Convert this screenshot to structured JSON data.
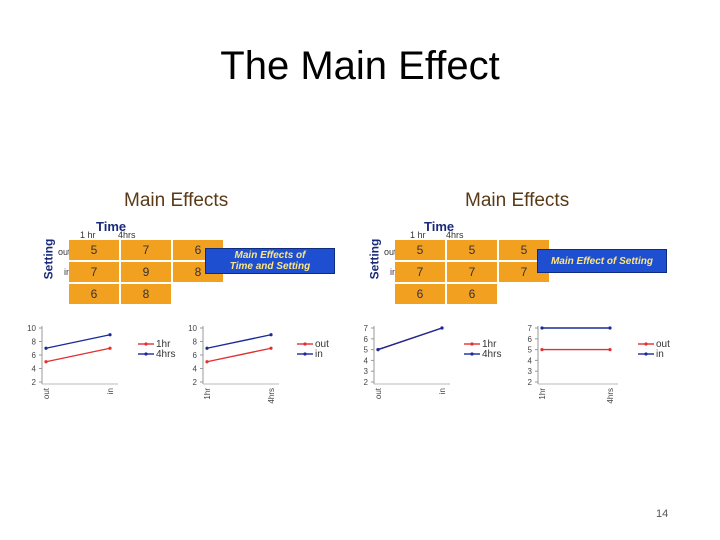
{
  "slide": {
    "title": "The Main Effect",
    "page_number": "14"
  },
  "panels": [
    {
      "title": "Main Effects",
      "time_label": "Time",
      "col_headers": [
        "1 hr",
        "4hrs"
      ],
      "setting_label": "Setting",
      "row_headers": [
        "out",
        "in"
      ],
      "cells": [
        [
          "5",
          "7",
          "6"
        ],
        [
          "7",
          "9",
          "8"
        ],
        [
          "6",
          "8"
        ]
      ],
      "box_text_1": "Main Effects of",
      "box_text_2": "Time and Setting"
    },
    {
      "title": "Main Effects",
      "time_label": "Time",
      "col_headers": [
        "1 hr",
        "4hrs"
      ],
      "setting_label": "Setting",
      "row_headers": [
        "out",
        "in"
      ],
      "cells": [
        [
          "5",
          "5",
          "5"
        ],
        [
          "7",
          "7",
          "7"
        ],
        [
          "6",
          "6"
        ]
      ],
      "box_text_1": "Main Effect of Setting",
      "box_text_2": ""
    }
  ],
  "chart_data": [
    {
      "type": "line",
      "ylim": [
        2,
        10
      ],
      "yticks": [
        "10",
        "8",
        "6",
        "4",
        "2"
      ],
      "categories": [
        "out",
        "in"
      ],
      "series": [
        {
          "name": "1hr",
          "values": [
            5,
            7
          ],
          "color": "#e03030"
        },
        {
          "name": "4hrs",
          "values": [
            7,
            9
          ],
          "color": "#1a2a9a"
        }
      ]
    },
    {
      "type": "line",
      "ylim": [
        2,
        10
      ],
      "yticks": [
        "10",
        "8",
        "6",
        "4",
        "2"
      ],
      "categories": [
        "1hr",
        "4hrs"
      ],
      "series": [
        {
          "name": "out",
          "values": [
            5,
            7
          ],
          "color": "#e03030"
        },
        {
          "name": "in",
          "values": [
            7,
            9
          ],
          "color": "#1a2a9a"
        }
      ]
    },
    {
      "type": "line",
      "ylim": [
        2,
        7
      ],
      "yticks": [
        "7",
        "6",
        "5",
        "4",
        "3",
        "2"
      ],
      "categories": [
        "out",
        "in"
      ],
      "series": [
        {
          "name": "1hr",
          "values": [
            5,
            7
          ],
          "color": "#e03030"
        },
        {
          "name": "4hrs",
          "values": [
            5,
            7
          ],
          "color": "#1a2a9a"
        }
      ]
    },
    {
      "type": "line",
      "ylim": [
        2,
        7
      ],
      "yticks": [
        "7",
        "6",
        "5",
        "4",
        "3",
        "2"
      ],
      "categories": [
        "1hr",
        "4hrs"
      ],
      "series": [
        {
          "name": "out",
          "values": [
            5,
            5
          ],
          "color": "#e03030"
        },
        {
          "name": "in",
          "values": [
            7,
            7
          ],
          "color": "#1a2a9a"
        }
      ]
    }
  ]
}
